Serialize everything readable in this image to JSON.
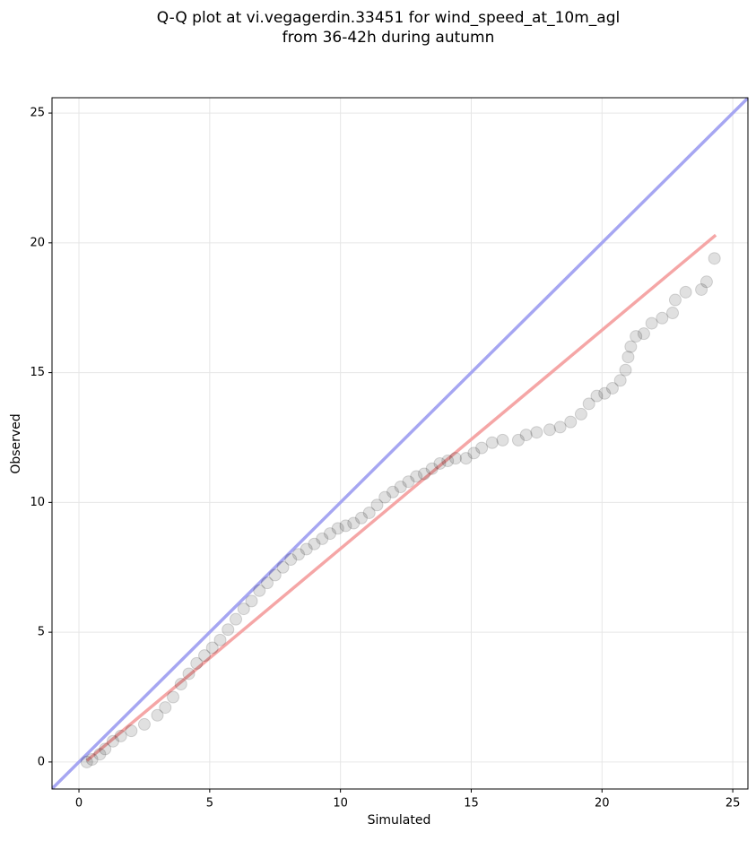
{
  "chart_data": {
    "type": "scatter",
    "title": [
      "Q-Q plot at vi.vegagerdin.33451 for wind_speed_at_10m_agl",
      "from 36-42h during autumn"
    ],
    "x_label": "Simulated",
    "y_label": "Observed",
    "xlim": [
      -1.03,
      25.58
    ],
    "ylim": [
      -1.04,
      25.59
    ],
    "xticks": [
      0,
      5,
      10,
      15,
      20,
      25
    ],
    "yticks": [
      0,
      5,
      10,
      15,
      20,
      25
    ],
    "grid": true,
    "point_color": "#000000",
    "x": [
      0.3,
      0.5,
      0.8,
      1,
      1.3,
      1.6,
      2,
      2.5,
      3,
      3.3,
      3.6,
      3.9,
      4.2,
      4.5,
      4.8,
      5.1,
      5.4,
      5.7,
      6,
      6.3,
      6.6,
      6.9,
      7.2,
      7.5,
      7.8,
      8.1,
      8.4,
      8.7,
      9,
      9.3,
      9.6,
      9.9,
      10.2,
      10.5,
      10.8,
      11.1,
      11.4,
      11.7,
      12,
      12.3,
      12.6,
      12.9,
      13.2,
      13.5,
      13.8,
      14.1,
      14.4,
      14.8,
      15.1,
      15.4,
      15.8,
      16.2,
      16.8,
      17.1,
      17.5,
      18,
      18.4,
      18.8,
      19.2,
      19.5,
      19.8,
      20.1,
      20.4,
      20.7,
      20.9,
      21,
      21.1,
      21.3,
      21.6,
      21.9,
      22.3,
      22.7,
      22.8,
      23.2,
      23.8,
      24,
      24.3
    ],
    "y": [
      0,
      0.1,
      0.3,
      0.5,
      0.8,
      1.0,
      1.2,
      1.45,
      1.8,
      2.1,
      2.5,
      3.0,
      3.4,
      3.8,
      4.1,
      4.4,
      4.7,
      5.1,
      5.5,
      5.9,
      6.2,
      6.6,
      6.9,
      7.2,
      7.5,
      7.8,
      8.0,
      8.2,
      8.4,
      8.6,
      8.8,
      9.0,
      9.1,
      9.2,
      9.4,
      9.6,
      9.9,
      10.2,
      10.4,
      10.6,
      10.8,
      11.0,
      11.1,
      11.3,
      11.5,
      11.6,
      11.7,
      11.7,
      11.9,
      12.1,
      12.3,
      12.4,
      12.4,
      12.6,
      12.7,
      12.8,
      12.9,
      13.1,
      13.4,
      13.8,
      14.1,
      14.2,
      14.4,
      14.7,
      15.1,
      15.6,
      16.0,
      16.4,
      16.5,
      16.9,
      17.1,
      17.3,
      17.8,
      18.1,
      18.2,
      18.5,
      19.4
    ],
    "reference_lines": [
      {
        "color": "#a6a6f2",
        "x": [
          -1.03,
          25.58
        ],
        "y": [
          -1.03,
          25.58
        ]
      },
      {
        "color": "#f5a6a6",
        "x": [
          0.3,
          24.35
        ],
        "y": [
          0.05,
          20.3
        ]
      }
    ]
  }
}
